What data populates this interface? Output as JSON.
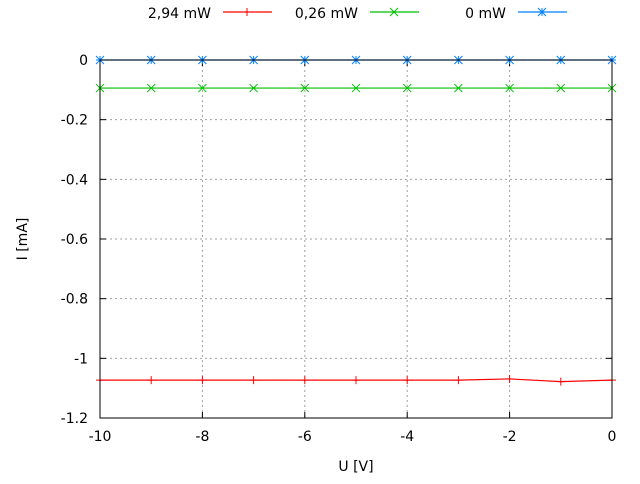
{
  "chart_data": {
    "type": "line",
    "xlabel": "U [V]",
    "ylabel": "I [mA]",
    "xlim": [
      -10,
      0
    ],
    "ylim": [
      -1.2,
      0
    ],
    "grid": true,
    "legend_placement": "top",
    "x_ticks": [
      "-10",
      "-8",
      "-6",
      "-4",
      "-2",
      "0"
    ],
    "y_ticks": [
      "0",
      "-0.2",
      "-0.4",
      "-0.6",
      "-0.8",
      "-1",
      "-1.2"
    ],
    "x": [
      -10,
      -9,
      -8,
      -7,
      -6,
      -5,
      -4,
      -3,
      -2,
      -1,
      0
    ],
    "series": [
      {
        "name": "2,94 mW",
        "color": "#ff0000",
        "marker": "plus",
        "values": [
          -1.073,
          -1.073,
          -1.073,
          -1.073,
          -1.073,
          -1.073,
          -1.073,
          -1.073,
          -1.069,
          -1.078,
          -1.073
        ]
      },
      {
        "name": "0,26 mW",
        "color": "#00c000",
        "marker": "cross",
        "values": [
          -0.094,
          -0.094,
          -0.094,
          -0.094,
          -0.094,
          -0.094,
          -0.094,
          -0.094,
          -0.094,
          -0.094,
          -0.094
        ]
      },
      {
        "name": "0 mW",
        "color": "#0080ff",
        "marker": "star",
        "values": [
          0,
          0,
          0,
          0,
          0,
          0,
          0,
          0,
          0,
          0,
          0
        ]
      }
    ]
  }
}
